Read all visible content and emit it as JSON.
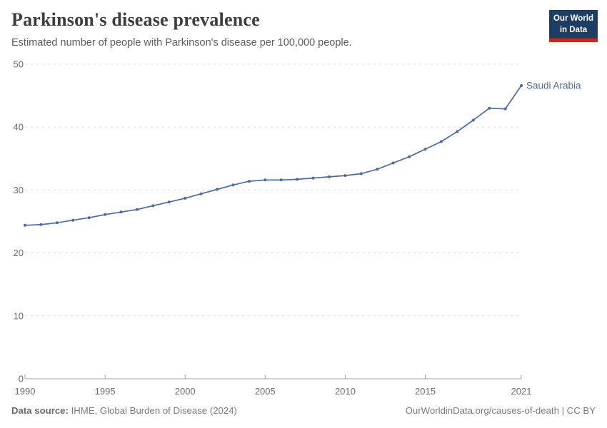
{
  "header": {
    "title": "Parkinson's disease prevalence",
    "subtitle": "Estimated number of people with Parkinson's disease per 100,000 people.",
    "logo": {
      "line1": "Our World",
      "line2": "in Data",
      "bg_color": "#1d3d63",
      "bar_color": "#cd2520"
    }
  },
  "chart_data": {
    "type": "line",
    "title": "Parkinson's disease prevalence",
    "xlabel": "",
    "ylabel": "",
    "x": [
      1990,
      1991,
      1992,
      1993,
      1994,
      1995,
      1996,
      1997,
      1998,
      1999,
      2000,
      2001,
      2002,
      2003,
      2004,
      2005,
      2006,
      2007,
      2008,
      2009,
      2010,
      2011,
      2012,
      2013,
      2014,
      2015,
      2016,
      2017,
      2018,
      2019,
      2020,
      2021
    ],
    "series": [
      {
        "name": "Saudi Arabia",
        "color": "#4c6a9c",
        "values": [
          24.4,
          24.5,
          24.8,
          25.2,
          25.6,
          26.1,
          26.5,
          26.9,
          27.5,
          28.1,
          28.7,
          29.4,
          30.1,
          30.8,
          31.4,
          31.6,
          31.6,
          31.7,
          31.9,
          32.1,
          32.3,
          32.6,
          33.3,
          34.3,
          35.3,
          36.5,
          37.7,
          39.3,
          41.1,
          43.0,
          42.9,
          46.6
        ]
      }
    ],
    "xlim": [
      1990,
      2021
    ],
    "ylim": [
      0,
      50
    ],
    "x_ticks": [
      1990,
      1995,
      2000,
      2005,
      2010,
      2015,
      2021
    ],
    "y_ticks": [
      0,
      10,
      20,
      30,
      40,
      50
    ],
    "grid": "horizontal-dashed",
    "grid_color": "#dcdcdc",
    "axis_color": "#a1a1a1",
    "legend_position": "end-of-line-label"
  },
  "footer": {
    "datasource_label": "Data source:",
    "datasource_value": "IHME, Global Burden of Disease (2024)",
    "credit": "OurWorldinData.org/causes-of-death | CC BY"
  }
}
